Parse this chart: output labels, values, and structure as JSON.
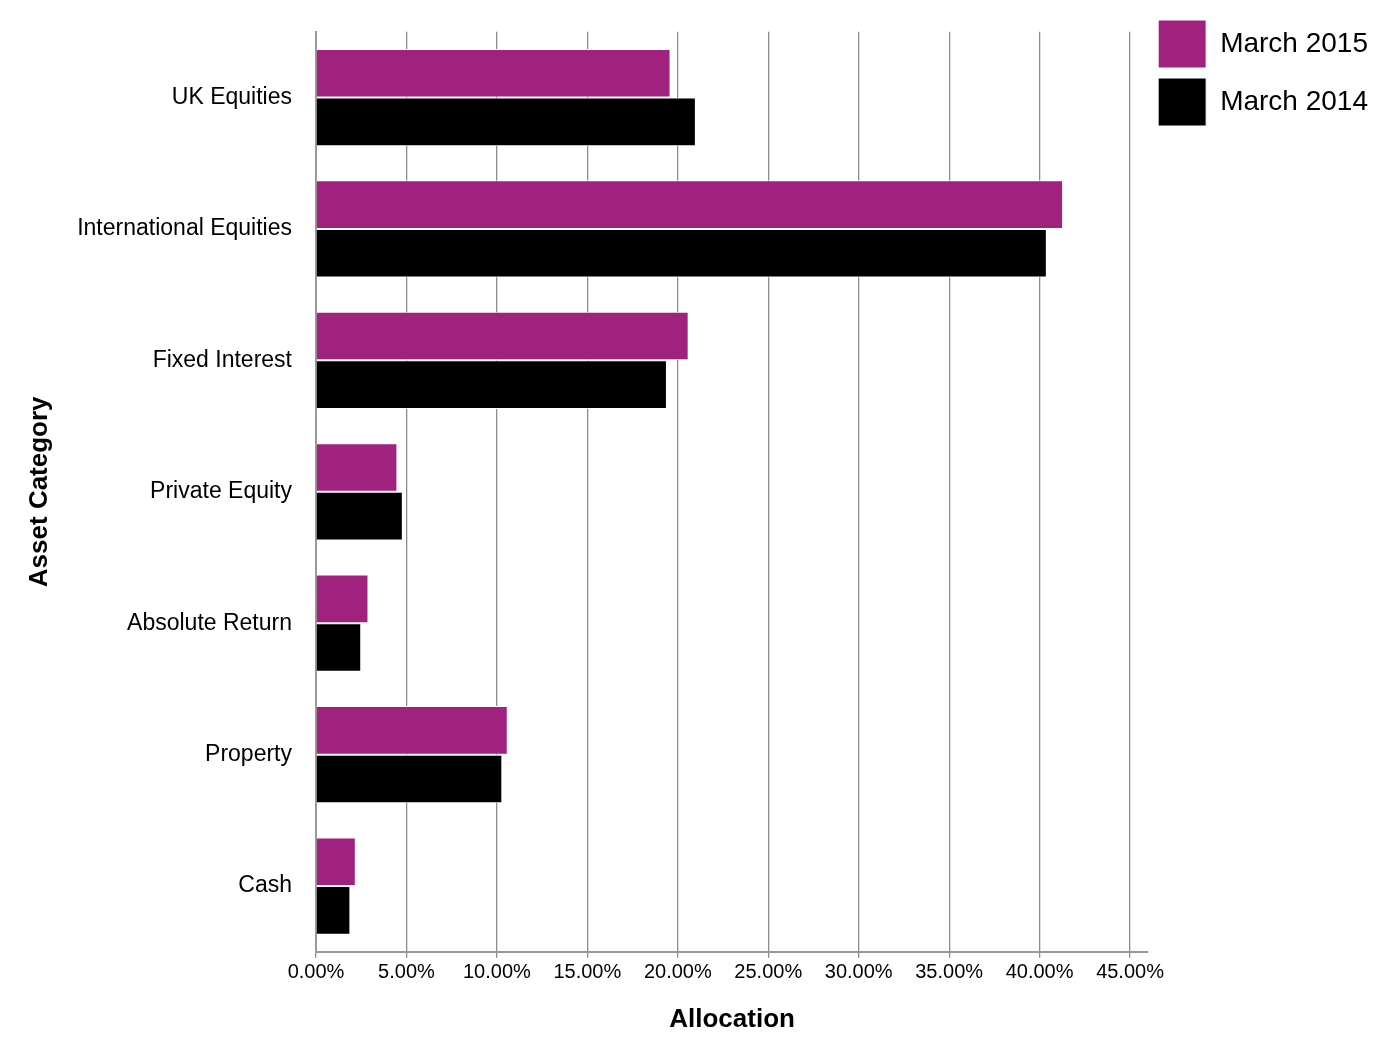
{
  "chart_data": {
    "type": "bar",
    "orientation": "horizontal",
    "xlabel": "Allocation",
    "ylabel": "Asset Category",
    "categories": [
      "UK Equities",
      "International Equities",
      "Fixed Interest",
      "Private Equity",
      "Absolute Return",
      "Property",
      "Cash"
    ],
    "series": [
      {
        "name": "March 2015",
        "color": "#a0227e",
        "values": [
          19.6,
          41.3,
          20.6,
          4.5,
          2.9,
          10.6,
          2.2
        ]
      },
      {
        "name": "March 2014",
        "color": "#000000",
        "values": [
          21.0,
          40.4,
          19.4,
          4.8,
          2.5,
          10.3,
          1.9
        ]
      }
    ],
    "xlim": [
      0,
      46
    ],
    "xticks": [
      {
        "value": 0,
        "label": "0.00%"
      },
      {
        "value": 5,
        "label": "5.00%"
      },
      {
        "value": 10,
        "label": "10.00%"
      },
      {
        "value": 15,
        "label": "15.00%"
      },
      {
        "value": 20,
        "label": "20.00%"
      },
      {
        "value": 25,
        "label": "25.00%"
      },
      {
        "value": 30,
        "label": "30.00%"
      },
      {
        "value": 35,
        "label": "35.00%"
      },
      {
        "value": 40,
        "label": "40.00%"
      },
      {
        "value": 45,
        "label": "45.00%"
      }
    ],
    "grid": "x",
    "legend": "top right"
  }
}
